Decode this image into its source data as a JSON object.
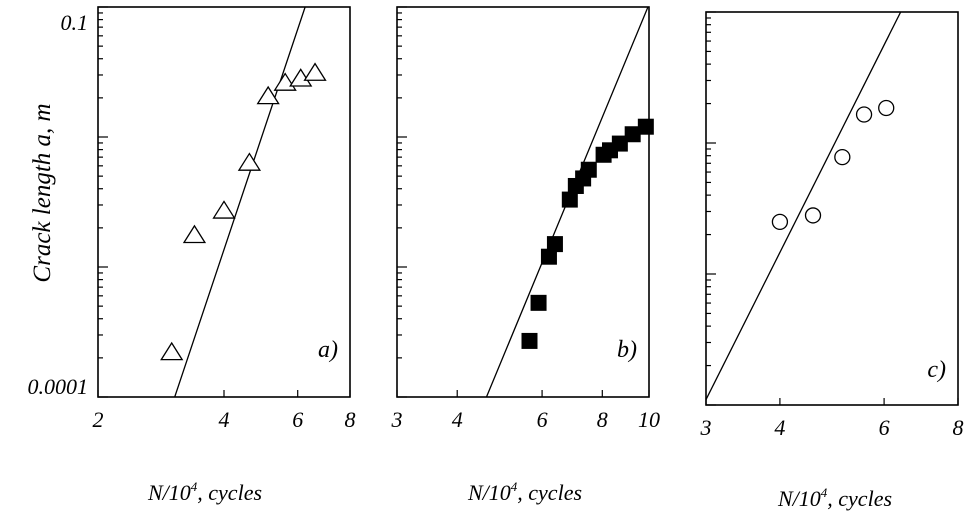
{
  "ylabel": "Crack length a, m",
  "y_tick_labels": [
    "0.1",
    "0.0001"
  ],
  "chart_data": [
    {
      "type": "scatter",
      "panel_label": "a)",
      "xlabel": "N/10⁴, cycles",
      "x_scale": "log",
      "y_scale": "log",
      "xlim": [
        2,
        8
      ],
      "ylim": [
        0.0001,
        0.1
      ],
      "x_ticks": [
        2,
        4,
        6,
        8
      ],
      "marker": "triangle-open",
      "points": [
        {
          "x": 3.0,
          "y": 0.00022
        },
        {
          "x": 3.4,
          "y": 0.00175
        },
        {
          "x": 4.0,
          "y": 0.0027
        },
        {
          "x": 4.6,
          "y": 0.0063
        },
        {
          "x": 5.1,
          "y": 0.0205
        },
        {
          "x": 5.6,
          "y": 0.026
        },
        {
          "x": 6.1,
          "y": 0.028
        },
        {
          "x": 6.6,
          "y": 0.031
        }
      ],
      "fit_line": [
        {
          "x": 3.05,
          "y": 0.0001
        },
        {
          "x": 6.25,
          "y": 0.1
        }
      ]
    },
    {
      "type": "scatter",
      "panel_label": "b)",
      "xlabel": "N/10⁴, cycles",
      "x_scale": "log",
      "y_scale": "log",
      "xlim": [
        3,
        10
      ],
      "ylim": [
        0.0001,
        0.1
      ],
      "x_ticks": [
        3,
        4,
        6,
        8,
        10
      ],
      "marker": "square-filled",
      "points": [
        {
          "x": 5.65,
          "y": 0.00027
        },
        {
          "x": 5.9,
          "y": 0.00053
        },
        {
          "x": 6.2,
          "y": 0.0012
        },
        {
          "x": 6.38,
          "y": 0.0015
        },
        {
          "x": 6.85,
          "y": 0.0033
        },
        {
          "x": 7.05,
          "y": 0.0042
        },
        {
          "x": 7.3,
          "y": 0.0048
        },
        {
          "x": 7.5,
          "y": 0.0056
        },
        {
          "x": 8.05,
          "y": 0.0073
        },
        {
          "x": 8.3,
          "y": 0.0079
        },
        {
          "x": 8.7,
          "y": 0.0089
        },
        {
          "x": 9.25,
          "y": 0.0105
        },
        {
          "x": 9.85,
          "y": 0.012
        }
      ],
      "fit_line": [
        {
          "x": 4.6,
          "y": 0.0001
        },
        {
          "x": 9.95,
          "y": 0.1
        }
      ]
    },
    {
      "type": "scatter",
      "panel_label": "c)",
      "xlabel": "N/10⁴, cycles",
      "x_scale": "log",
      "y_scale": "log",
      "xlim": [
        3,
        8
      ],
      "ylim": [
        0.0001,
        0.1
      ],
      "x_ticks": [
        3,
        4,
        6,
        8
      ],
      "marker": "circle-open",
      "points": [
        {
          "x": 4.0,
          "y": 0.0025
        },
        {
          "x": 4.55,
          "y": 0.0028
        },
        {
          "x": 5.1,
          "y": 0.0078
        },
        {
          "x": 5.55,
          "y": 0.0165
        },
        {
          "x": 6.05,
          "y": 0.0185
        }
      ],
      "fit_line": [
        {
          "x": 3.0,
          "y": 0.00011
        },
        {
          "x": 6.4,
          "y": 0.1
        }
      ]
    }
  ]
}
